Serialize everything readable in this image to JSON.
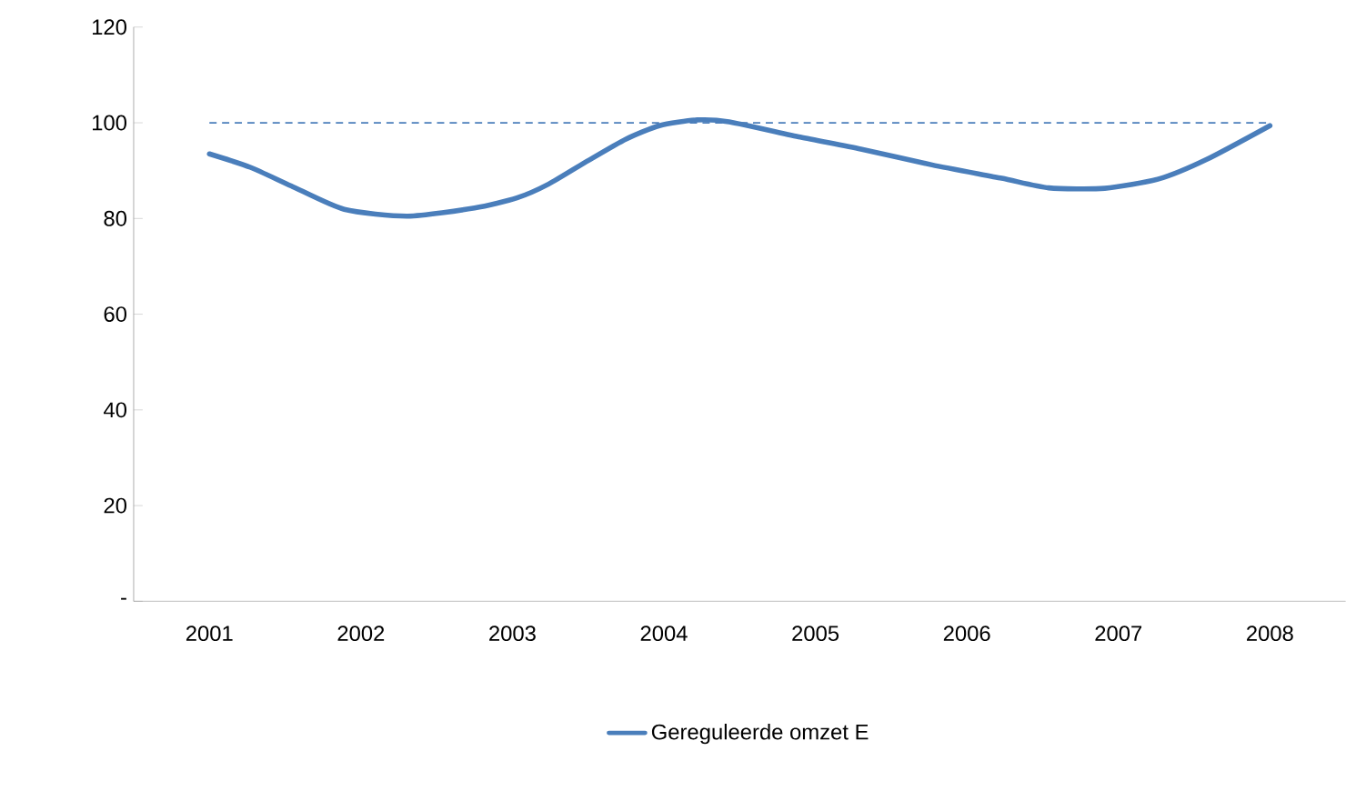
{
  "chart_data": {
    "type": "line",
    "x": [
      2001.0,
      2001.27,
      2001.54,
      2001.89,
      2002.31,
      2002.75,
      2003.03,
      2003.24,
      2003.5,
      2003.75,
      2003.97,
      2004.22,
      2004.43,
      2004.9,
      2005.3,
      2005.77,
      2006.23,
      2006.54,
      2006.91,
      2007.27,
      2007.58,
      2008.0
    ],
    "series": [
      {
        "name": "Gereguleerde omzet E",
        "color": "#4a7ebb",
        "values": [
          93.5,
          90.7,
          86.8,
          81.9,
          80.5,
          82.2,
          84.3,
          87.2,
          92.1,
          96.6,
          99.4,
          100.6,
          100.2,
          97,
          94.5,
          91.2,
          88.4,
          86.4,
          86.3,
          88.3,
          92.3,
          99.4
        ]
      }
    ],
    "xlim": [
      2000.5,
      2008.5
    ],
    "xticks": [
      {
        "value": 2001,
        "label": "2001"
      },
      {
        "value": 2002,
        "label": "2002"
      },
      {
        "value": 2003,
        "label": "2003"
      },
      {
        "value": 2004,
        "label": "2004"
      },
      {
        "value": 2005,
        "label": "2005"
      },
      {
        "value": 2006,
        "label": "2006"
      },
      {
        "value": 2007,
        "label": "2007"
      },
      {
        "value": 2008,
        "label": "2008"
      }
    ],
    "ylim": [
      0,
      120
    ],
    "yticks": [
      {
        "value": 0,
        "label": "-"
      },
      20,
      40,
      60,
      80,
      100,
      120
    ],
    "ref_lines": [
      {
        "axis": "y",
        "value": 100,
        "color": "#4a7ebb",
        "line_style": "dashed"
      }
    ],
    "legend": "bottom",
    "grid": false,
    "marker": "none",
    "line_style": "solid"
  }
}
